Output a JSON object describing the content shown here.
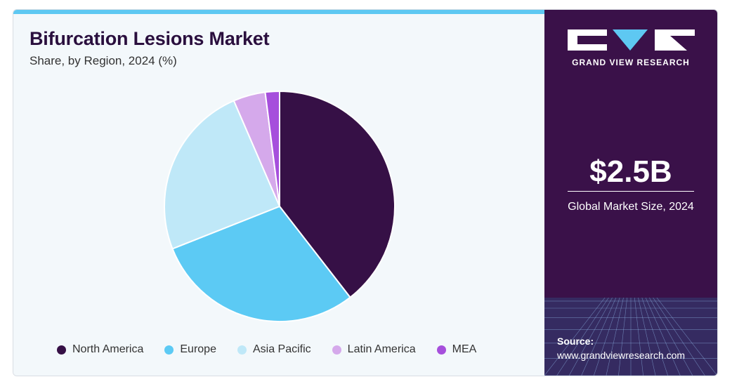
{
  "header": {
    "title": "Bifurcation Lesions Market",
    "subtitle": "Share, by Region, 2024 (%)"
  },
  "chart_data": {
    "type": "pie",
    "categories": [
      "North America",
      "Europe",
      "Asia Pacific",
      "Latin America",
      "MEA"
    ],
    "values": [
      39.5,
      29.5,
      24.5,
      4.5,
      2.0
    ],
    "colors": [
      "#361046",
      "#5ccaf4",
      "#bfe8f8",
      "#d5a9eb",
      "#a64fdc"
    ],
    "legend_position": "bottom",
    "start_angle": "top, clockwise"
  },
  "sidebar": {
    "brand_name": "GRAND VIEW RESEARCH",
    "market_size_value": "$2.5B",
    "market_size_caption": "Global Market Size, 2024",
    "source_label": "Source:",
    "source_url": "www.grandviewresearch.com",
    "logo_icon": "gvr-logo-icon",
    "background_color": "#3a1149"
  }
}
